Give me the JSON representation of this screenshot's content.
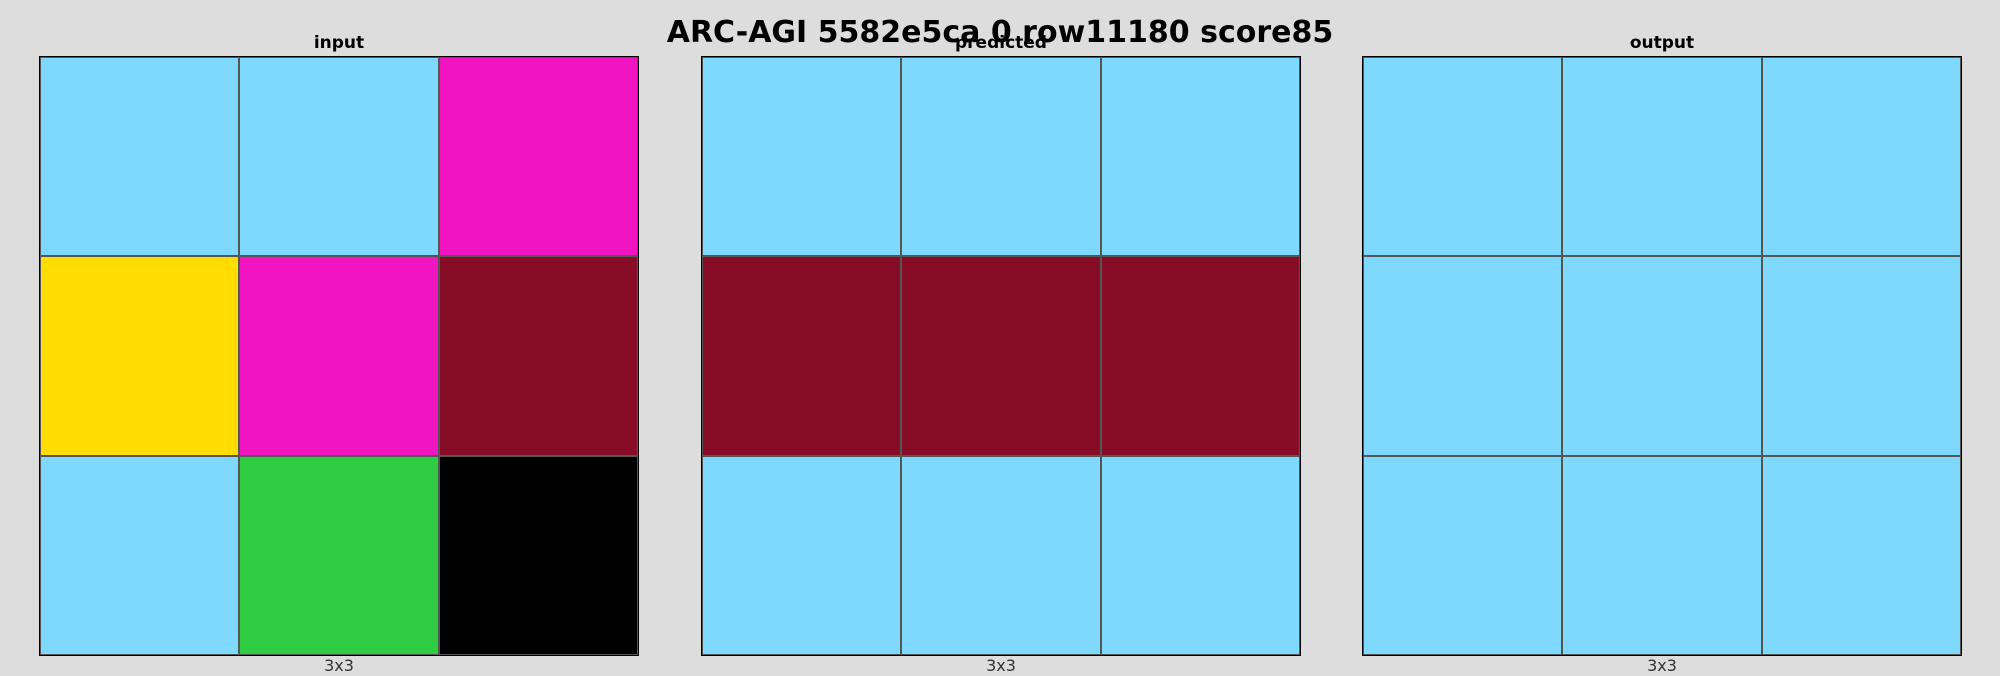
{
  "title": "ARC-AGI 5582e5ca 0 row11180 score85",
  "palette": {
    "1": "#7fd9ff",
    "2": "#f015c0",
    "3": "#ffdd00",
    "4": "#870c25",
    "5": "#2ecc40",
    "6": "#000000"
  },
  "panels": [
    {
      "label": "input",
      "dims": "3x3",
      "grid": [
        [
          1,
          1,
          2
        ],
        [
          3,
          2,
          4
        ],
        [
          1,
          5,
          6
        ]
      ]
    },
    {
      "label": "predicted",
      "dims": "3x3",
      "grid": [
        [
          1,
          1,
          1
        ],
        [
          4,
          4,
          4
        ],
        [
          1,
          1,
          1
        ]
      ]
    },
    {
      "label": "output",
      "dims": "3x3",
      "grid": [
        [
          1,
          1,
          1
        ],
        [
          1,
          1,
          1
        ],
        [
          1,
          1,
          1
        ]
      ]
    }
  ]
}
